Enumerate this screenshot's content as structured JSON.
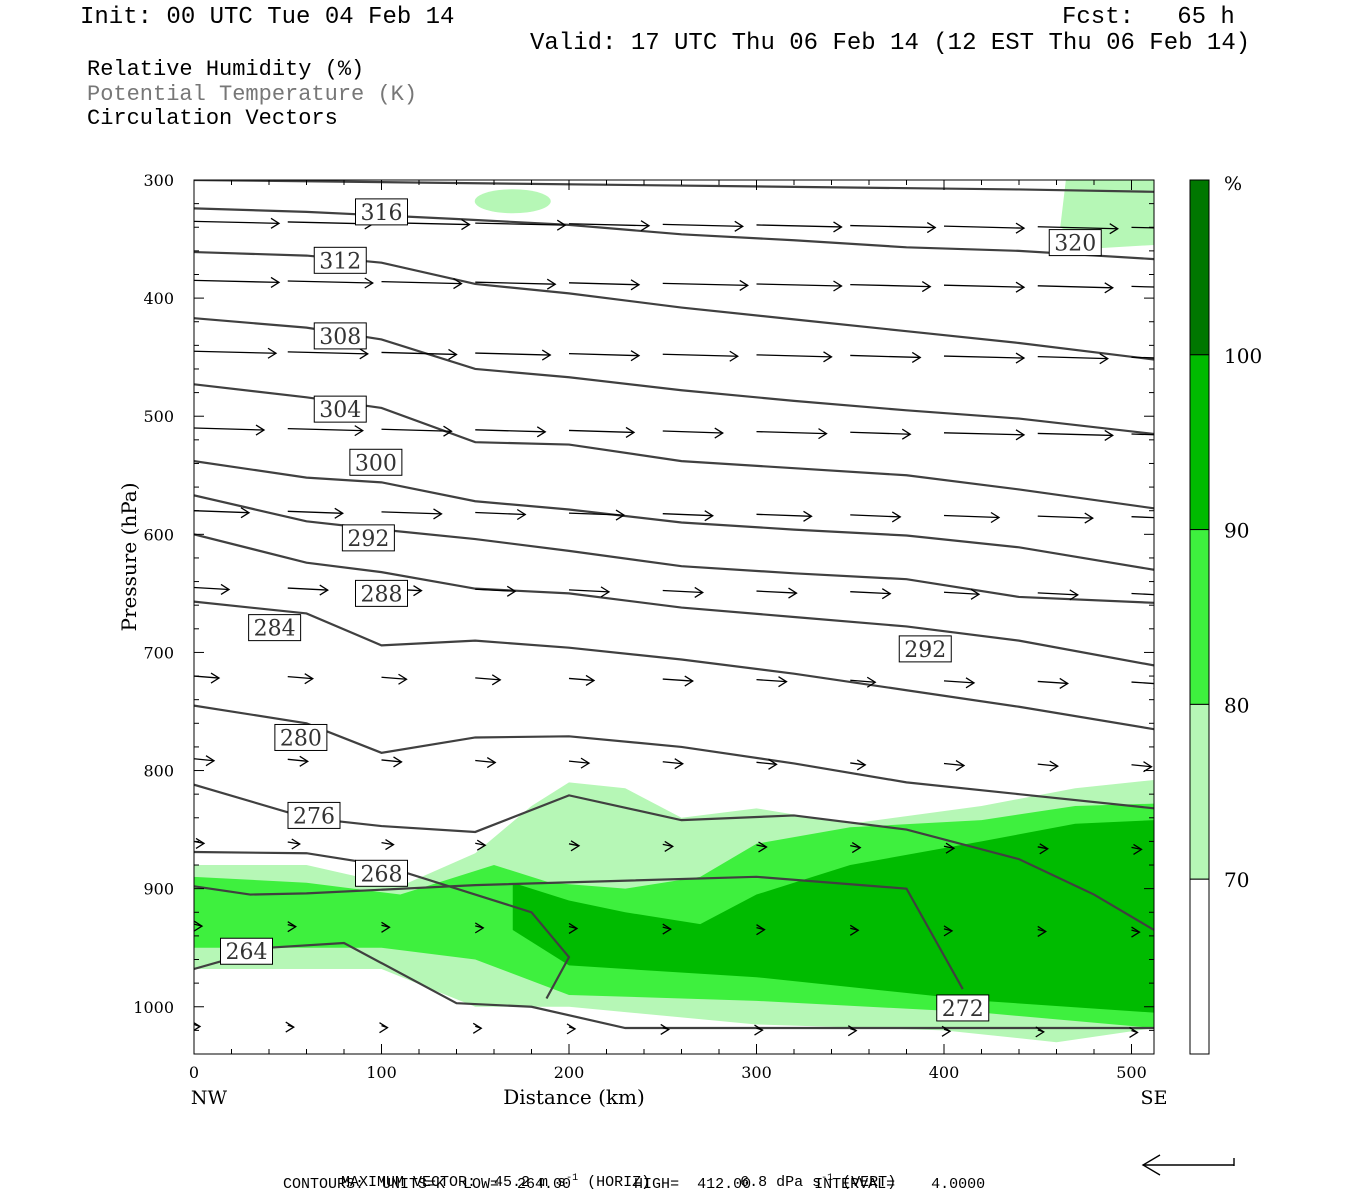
{
  "header": {
    "init": "Init: 00 UTC Tue 04 Feb 14",
    "fcst": "Fcst:   65 h",
    "valid": "Valid: 17 UTC Thu 06 Feb 14 (12 EST Thu 06 Feb 14)",
    "fields": [
      "Relative Humidity (%)",
      "Potential Temperature (K)",
      "Circulation Vectors"
    ]
  },
  "footer": {
    "max_vector_label": "MAXIMUM VECTOR:",
    "horiz_value": "45.2 m s",
    "horiz_unit": "(HORIZ)",
    "vert_value": "6.8 dPa s",
    "vert_unit": "(VERT)",
    "exponent": "-1",
    "contours": "CONTOURS:  UNITS=K  LOW=  264.00       HIGH=  412.00       INTERVAL=    4.0000"
  },
  "colors": {
    "rh_70": "#b6f7b6",
    "rh_80": "#3ef03e",
    "rh_90": "#00bb00",
    "rh_100": "#007700",
    "contour": "#404040"
  },
  "chart_data": {
    "type": "cross-section",
    "xlabel": "Distance (km)",
    "ylabel": "Pressure (hPa)",
    "x_ticks": [
      0,
      100,
      200,
      300,
      400,
      500
    ],
    "x_end_labels": [
      "NW",
      "SE"
    ],
    "xlim": [
      0,
      512
    ],
    "y_ticks": [
      300,
      400,
      500,
      600,
      700,
      800,
      900,
      1000
    ],
    "ylim": [
      300,
      1040
    ],
    "colorbar": {
      "unit": "%",
      "levels": [
        70,
        80,
        90,
        100
      ],
      "tick_labels": [
        "70",
        "80",
        "90",
        "100"
      ]
    },
    "theta_contours": [
      {
        "level": 316,
        "label_x": 100,
        "label_p": 327,
        "points": [
          [
            0,
            324
          ],
          [
            60,
            327
          ],
          [
            140,
            333
          ],
          [
            200,
            338
          ],
          [
            260,
            346
          ],
          [
            320,
            351
          ],
          [
            380,
            357
          ],
          [
            440,
            360
          ],
          [
            512,
            367
          ]
        ]
      },
      {
        "level": 320,
        "label_x": 470,
        "label_p": 353,
        "points": [
          [
            0,
            300
          ],
          [
            440,
            308
          ],
          [
            512,
            310
          ]
        ]
      },
      {
        "level": 312,
        "label_x": 78,
        "label_p": 368,
        "points": [
          [
            0,
            361
          ],
          [
            60,
            364
          ],
          [
            100,
            370
          ],
          [
            150,
            388
          ],
          [
            200,
            396
          ],
          [
            260,
            408
          ],
          [
            320,
            418
          ],
          [
            380,
            428
          ],
          [
            440,
            438
          ],
          [
            512,
            452
          ]
        ]
      },
      {
        "level": 308,
        "label_x": 78,
        "label_p": 432,
        "points": [
          [
            0,
            417
          ],
          [
            60,
            425
          ],
          [
            100,
            435
          ],
          [
            150,
            460
          ],
          [
            200,
            467
          ],
          [
            260,
            478
          ],
          [
            320,
            487
          ],
          [
            380,
            495
          ],
          [
            440,
            502
          ],
          [
            512,
            515
          ]
        ]
      },
      {
        "level": 304,
        "label_x": 78,
        "label_p": 494,
        "points": [
          [
            0,
            473
          ],
          [
            60,
            484
          ],
          [
            100,
            493
          ],
          [
            150,
            522
          ],
          [
            200,
            524
          ],
          [
            260,
            538
          ],
          [
            320,
            544
          ],
          [
            380,
            550
          ],
          [
            440,
            562
          ],
          [
            512,
            578
          ]
        ]
      },
      {
        "level": 300,
        "label_x": 97,
        "label_p": 539,
        "points": [
          [
            0,
            538
          ],
          [
            60,
            552
          ],
          [
            100,
            556
          ],
          [
            150,
            572
          ],
          [
            200,
            579
          ],
          [
            260,
            590
          ],
          [
            320,
            596
          ],
          [
            380,
            601
          ],
          [
            440,
            611
          ],
          [
            512,
            630
          ]
        ]
      },
      {
        "level": 292,
        "label_x": 93,
        "label_p": 603,
        "points": [
          [
            0,
            567
          ],
          [
            60,
            589
          ],
          [
            100,
            596
          ],
          [
            150,
            604
          ],
          [
            200,
            614
          ],
          [
            260,
            627
          ],
          [
            320,
            633
          ],
          [
            380,
            638
          ],
          [
            440,
            653
          ],
          [
            512,
            658
          ]
        ]
      },
      {
        "level": 288,
        "label_x": 100,
        "label_p": 650,
        "points": [
          [
            0,
            600
          ],
          [
            60,
            624
          ],
          [
            100,
            632
          ],
          [
            150,
            646
          ],
          [
            200,
            650
          ],
          [
            260,
            662
          ],
          [
            320,
            670
          ],
          [
            380,
            678
          ],
          [
            440,
            690
          ],
          [
            512,
            711
          ]
        ]
      },
      {
        "level": 284,
        "label_x": 43,
        "label_p": 679,
        "points": [
          [
            0,
            657
          ],
          [
            60,
            667
          ],
          [
            100,
            694
          ],
          [
            150,
            690
          ],
          [
            200,
            696
          ],
          [
            260,
            706
          ],
          [
            320,
            718
          ],
          [
            380,
            732
          ],
          [
            440,
            746
          ],
          [
            512,
            765
          ]
        ]
      },
      {
        "level": 292,
        "label_x": 390,
        "label_p": 697,
        "points": [
          [
            0,
            0
          ]
        ]
      },
      {
        "level": 280,
        "label_x": 57,
        "label_p": 772,
        "points": [
          [
            0,
            745
          ],
          [
            60,
            760
          ],
          [
            100,
            785
          ],
          [
            150,
            772
          ],
          [
            200,
            771
          ],
          [
            260,
            780
          ],
          [
            320,
            794
          ],
          [
            380,
            810
          ],
          [
            440,
            820
          ],
          [
            512,
            832
          ]
        ]
      },
      {
        "level": 276,
        "label_x": 64,
        "label_p": 838,
        "points": [
          [
            0,
            812
          ],
          [
            60,
            840
          ],
          [
            100,
            847
          ],
          [
            150,
            852
          ],
          [
            200,
            821
          ],
          [
            260,
            842
          ],
          [
            320,
            838
          ],
          [
            380,
            850
          ],
          [
            440,
            875
          ],
          [
            480,
            905
          ],
          [
            512,
            935
          ]
        ]
      },
      {
        "level": 268,
        "label_x": 100,
        "label_p": 887,
        "points": [
          [
            0,
            869
          ],
          [
            60,
            870
          ],
          [
            100,
            880
          ],
          [
            150,
            905
          ],
          [
            180,
            920
          ],
          [
            200,
            958
          ],
          [
            188,
            993
          ]
        ]
      },
      {
        "level": 264,
        "label_x": 28,
        "label_p": 953,
        "points": [
          [
            0,
            968
          ],
          [
            40,
            950
          ],
          [
            80,
            946
          ],
          [
            140,
            997
          ],
          [
            180,
            1000
          ],
          [
            230,
            1018
          ],
          [
            512,
            1018
          ]
        ]
      },
      {
        "level": 272,
        "label_x": 410,
        "label_p": 1001,
        "points": [
          [
            0,
            898
          ],
          [
            30,
            905
          ],
          [
            60,
            904
          ],
          [
            150,
            897
          ],
          [
            300,
            890
          ],
          [
            380,
            900
          ],
          [
            410,
            985
          ]
        ]
      }
    ],
    "rh_regions": [
      {
        "level": 70,
        "points": [
          [
            0,
            880
          ],
          [
            60,
            880
          ],
          [
            110,
            898
          ],
          [
            150,
            870
          ],
          [
            180,
            830
          ],
          [
            200,
            810
          ],
          [
            230,
            815
          ],
          [
            260,
            840
          ],
          [
            300,
            832
          ],
          [
            350,
            845
          ],
          [
            420,
            830
          ],
          [
            470,
            815
          ],
          [
            512,
            808
          ],
          [
            512,
            1018
          ],
          [
            460,
            1030
          ],
          [
            400,
            1020
          ],
          [
            300,
            1015
          ],
          [
            200,
            1000
          ],
          [
            150,
            1000
          ],
          [
            100,
            968
          ],
          [
            0,
            968
          ]
        ]
      },
      {
        "level": 80,
        "points": [
          [
            0,
            890
          ],
          [
            60,
            895
          ],
          [
            110,
            905
          ],
          [
            160,
            880
          ],
          [
            190,
            895
          ],
          [
            230,
            900
          ],
          [
            270,
            890
          ],
          [
            300,
            862
          ],
          [
            350,
            848
          ],
          [
            420,
            842
          ],
          [
            470,
            830
          ],
          [
            512,
            828
          ],
          [
            512,
            1018
          ],
          [
            420,
            1005
          ],
          [
            300,
            995
          ],
          [
            200,
            990
          ],
          [
            150,
            960
          ],
          [
            100,
            950
          ],
          [
            0,
            950
          ]
        ]
      },
      {
        "level": 90,
        "points": [
          [
            170,
            895
          ],
          [
            200,
            910
          ],
          [
            230,
            920
          ],
          [
            270,
            930
          ],
          [
            300,
            905
          ],
          [
            350,
            880
          ],
          [
            420,
            860
          ],
          [
            470,
            845
          ],
          [
            512,
            842
          ],
          [
            512,
            1005
          ],
          [
            420,
            995
          ],
          [
            300,
            975
          ],
          [
            200,
            965
          ],
          [
            170,
            935
          ]
        ]
      },
      {
        "level": 100,
        "points": [
          [
            0,
            0
          ]
        ]
      }
    ],
    "vectors_note": "circulation vectors drawn as arrows along pressure levels"
  }
}
